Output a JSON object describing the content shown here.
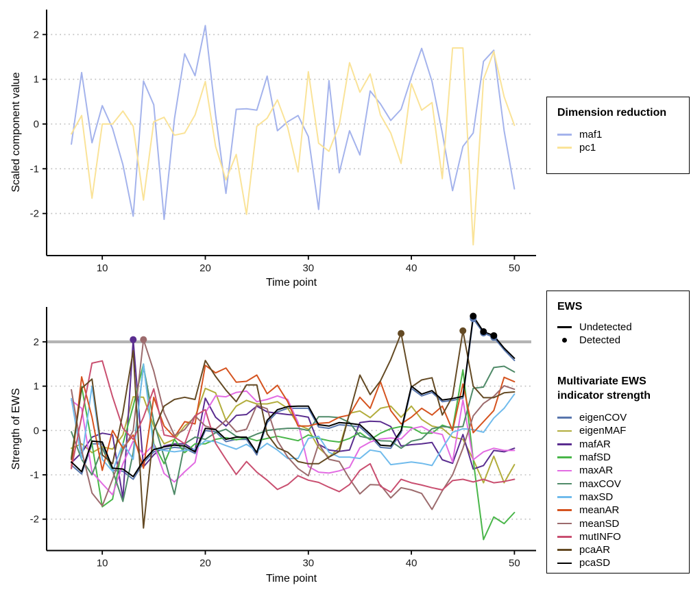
{
  "axes": {
    "top": {
      "ylabel": "Scaled component value",
      "xlabel": "Time point",
      "yticks": [
        "2",
        "1",
        "0",
        "-1",
        "-2"
      ],
      "xticks": [
        "10",
        "20",
        "30",
        "40",
        "50"
      ]
    },
    "bottom": {
      "ylabel": "Strength of EWS",
      "xlabel": "Time point",
      "yticks": [
        "2",
        "1",
        "0",
        "-1",
        "-2"
      ],
      "xticks": [
        "10",
        "20",
        "30",
        "40",
        "50"
      ]
    }
  },
  "legends": {
    "dimension": {
      "title": "Dimension reduction",
      "items": [
        {
          "label": "maf1",
          "color": "#a4b3ec"
        },
        {
          "label": "pc1",
          "color": "#fae398"
        }
      ]
    },
    "ews": {
      "title": "EWS",
      "items": [
        {
          "label": "Undetected",
          "glyph": "line",
          "color": "#000000"
        },
        {
          "label": "Detected",
          "glyph": "dot",
          "color": "#000000"
        }
      ]
    },
    "multivariate": {
      "title": "Multivariate EWS indicator strength",
      "items": [
        {
          "label": "eigenCOV",
          "color": "#5876ad"
        },
        {
          "label": "eigenMAF",
          "color": "#b2ad3c"
        },
        {
          "label": "mafAR",
          "color": "#5a2d8f"
        },
        {
          "label": "mafSD",
          "color": "#49b649"
        },
        {
          "label": "maxAR",
          "color": "#e26be2"
        },
        {
          "label": "maxCOV",
          "color": "#4f8a68"
        },
        {
          "label": "maxSD",
          "color": "#70bbec"
        },
        {
          "label": "meanAR",
          "color": "#d5531f"
        },
        {
          "label": "meanSD",
          "color": "#9c6b6d"
        },
        {
          "label": "mutINFO",
          "color": "#c94f70"
        },
        {
          "label": "pcaAR",
          "color": "#644a24"
        },
        {
          "label": "pcaSD",
          "color": "#000000"
        }
      ]
    }
  },
  "chart_data": [
    {
      "type": "line",
      "title": "",
      "xlabel": "Time point",
      "ylabel": "Scaled component value",
      "x": [
        7,
        8,
        9,
        10,
        11,
        12,
        13,
        14,
        15,
        16,
        17,
        18,
        19,
        20,
        21,
        22,
        23,
        24,
        25,
        26,
        27,
        28,
        29,
        30,
        31,
        32,
        33,
        34,
        35,
        36,
        37,
        38,
        39,
        40,
        41,
        42,
        43,
        44,
        45,
        46,
        47,
        48,
        49,
        50
      ],
      "xlim": [
        4.6,
        52.1
      ],
      "ylim": [
        -2.9,
        2.55
      ],
      "grid": "dotted-horizontal",
      "legend_position": "right",
      "series": [
        {
          "name": "maf1",
          "color": "#a4b3ec",
          "values": [
            -0.45,
            1.15,
            -0.42,
            0.41,
            -0.1,
            -0.91,
            -2.06,
            0.96,
            0.43,
            -2.13,
            0.11,
            1.57,
            1.08,
            2.2,
            0.2,
            -1.55,
            0.33,
            0.34,
            0.31,
            1.07,
            -0.15,
            0.05,
            0.19,
            -0.28,
            -1.91,
            0.97,
            -1.09,
            -0.15,
            -0.69,
            0.74,
            0.45,
            0.08,
            0.33,
            1.04,
            1.69,
            0.95,
            -0.2,
            -1.49,
            -0.5,
            -0.2,
            1.4,
            1.65,
            -0.15,
            -1.45
          ]
        },
        {
          "name": "pc1",
          "color": "#fae398",
          "values": [
            -0.22,
            0.19,
            -1.66,
            0.0,
            0.0,
            0.29,
            -0.05,
            -1.7,
            0.05,
            0.15,
            -0.25,
            -0.2,
            0.2,
            0.95,
            -0.5,
            -1.25,
            -0.68,
            -2.02,
            -0.05,
            0.13,
            0.54,
            -0.08,
            -1.07,
            1.17,
            -0.43,
            -0.61,
            -0.02,
            1.37,
            0.71,
            1.12,
            0.2,
            -0.2,
            -0.88,
            0.9,
            0.31,
            0.48,
            -1.22,
            1.7,
            1.7,
            -2.7,
            1.0,
            1.62,
            0.61,
            -0.03
          ]
        }
      ]
    },
    {
      "type": "line",
      "title": "",
      "xlabel": "Time point",
      "ylabel": "Strength of EWS",
      "x": [
        7,
        8,
        9,
        10,
        11,
        12,
        13,
        14,
        15,
        16,
        17,
        18,
        19,
        20,
        21,
        22,
        23,
        24,
        25,
        26,
        27,
        28,
        29,
        30,
        31,
        32,
        33,
        34,
        35,
        36,
        37,
        38,
        39,
        40,
        41,
        42,
        43,
        44,
        45,
        46,
        47,
        48,
        49,
        50
      ],
      "xlim": [
        4.6,
        52.1
      ],
      "ylim": [
        -2.75,
        2.8
      ],
      "grid": "dotted-horizontal",
      "threshold": {
        "value": 2,
        "color": "#b4b4b4"
      },
      "legend_position": "right",
      "series": [
        {
          "name": "eigenCOV",
          "color": "#5876ad",
          "detected": [
            46,
            47,
            48
          ],
          "values": [
            -0.78,
            -0.98,
            -0.3,
            -0.3,
            -0.9,
            -0.92,
            -1.1,
            -0.73,
            -0.48,
            -0.42,
            -0.38,
            -0.4,
            -0.52,
            0.0,
            -0.03,
            -0.25,
            -0.2,
            -0.2,
            -0.55,
            0.18,
            0.42,
            0.5,
            0.5,
            0.5,
            0.08,
            0.05,
            0.13,
            0.11,
            0.08,
            -0.13,
            -0.38,
            -0.4,
            -0.05,
            0.95,
            0.78,
            0.86,
            0.65,
            0.68,
            0.73,
            2.52,
            2.2,
            2.1,
            1.82,
            1.58
          ]
        },
        {
          "name": "eigenMAF",
          "color": "#b2ad3c",
          "detected": [],
          "values": [
            -0.4,
            -0.3,
            -0.5,
            -0.37,
            -0.42,
            -0.1,
            0.76,
            0.75,
            0.1,
            -0.3,
            -0.2,
            0.1,
            0.3,
            0.95,
            0.85,
            0.23,
            0.55,
            0.68,
            0.6,
            0.6,
            0.65,
            0.5,
            0.13,
            0.03,
            -0.39,
            -0.6,
            -0.39,
            0.39,
            0.44,
            0.29,
            0.5,
            0.55,
            0.3,
            0.55,
            0.25,
            0.1,
            0.05,
            -0.15,
            -0.2,
            -0.65,
            -1.18,
            -0.58,
            -1.18,
            -0.77
          ]
        },
        {
          "name": "mafAR",
          "color": "#5a2d8f",
          "detected": [
            13
          ],
          "values": [
            -0.73,
            -0.5,
            -0.15,
            -0.06,
            -0.1,
            -1.53,
            2.05,
            -0.82,
            -0.55,
            -0.35,
            -0.3,
            -0.3,
            -0.45,
            0.73,
            0.3,
            0.1,
            0.34,
            0.36,
            0.55,
            0.42,
            0.39,
            0.36,
            0.34,
            0.3,
            -0.31,
            -0.44,
            -0.47,
            -0.44,
            0.18,
            0.21,
            0.2,
            0.09,
            -0.35,
            -0.32,
            -0.3,
            -0.27,
            -0.66,
            -0.74,
            -0.09,
            -0.87,
            -0.79,
            -0.45,
            -0.48,
            -0.4
          ]
        },
        {
          "name": "mafSD",
          "color": "#49b649",
          "detected": [],
          "values": [
            -0.61,
            0.99,
            -0.3,
            -1.72,
            -1.55,
            -0.3,
            0.55,
            1.5,
            -0.3,
            -0.75,
            -0.2,
            -0.5,
            -0.3,
            -0.3,
            -0.2,
            -0.16,
            -0.21,
            -0.16,
            -0.23,
            -0.18,
            -0.13,
            -0.18,
            -0.23,
            -0.1,
            -0.18,
            -0.23,
            -0.26,
            -0.18,
            -0.05,
            -0.21,
            -0.06,
            0.04,
            0.09,
            0.07,
            -0.06,
            -0.06,
            0.12,
            0.04,
            1.37,
            -0.66,
            -2.46,
            -1.95,
            -2.1,
            -1.85
          ]
        },
        {
          "name": "maxAR",
          "color": "#e26be2",
          "detected": [],
          "values": [
            0.68,
            0.5,
            -0.94,
            -1.2,
            -1.45,
            -0.75,
            -0.24,
            -0.55,
            -0.32,
            -0.97,
            -1.16,
            -0.93,
            -0.72,
            0.4,
            0.78,
            0.76,
            0.86,
            0.89,
            0.65,
            0.7,
            0.78,
            0.7,
            0.18,
            -0.81,
            -0.94,
            -0.96,
            -0.91,
            -0.83,
            -0.39,
            -0.26,
            -0.19,
            -0.17,
            -0.19,
            0.04,
            0.09,
            -0.04,
            -0.09,
            -0.71,
            0.69,
            -0.66,
            -0.48,
            -0.4,
            -0.45,
            -0.45
          ]
        },
        {
          "name": "maxCOV",
          "color": "#4f8a68",
          "detected": [],
          "values": [
            -0.03,
            -0.65,
            -1.0,
            -0.4,
            -0.9,
            -1.6,
            -0.5,
            1.45,
            0.2,
            -0.6,
            -1.44,
            -0.3,
            -0.15,
            -0.2,
            -0.05,
            0.03,
            -0.13,
            -0.18,
            -0.08,
            0.0,
            0.03,
            0.05,
            0.05,
            0.0,
            0.31,
            0.31,
            0.29,
            0.18,
            -0.13,
            -0.18,
            -0.23,
            -0.24,
            -0.4,
            -0.24,
            -0.19,
            0.04,
            0.09,
            0.07,
            0.09,
            0.95,
            0.98,
            1.42,
            1.45,
            1.32
          ]
        },
        {
          "name": "maxSD",
          "color": "#70bbec",
          "detected": [],
          "values": [
            0.72,
            -0.65,
            1.0,
            -0.65,
            -0.92,
            -0.29,
            -0.65,
            1.5,
            -0.4,
            -0.45,
            -0.48,
            -0.45,
            -0.42,
            -0.23,
            -0.25,
            -0.34,
            -0.42,
            -0.31,
            -0.47,
            -0.29,
            -0.44,
            -0.63,
            -0.63,
            -0.18,
            -0.13,
            -0.49,
            -0.6,
            -0.6,
            -0.63,
            -0.44,
            -0.48,
            -0.77,
            -0.74,
            -0.71,
            -0.74,
            -0.79,
            -0.4,
            -0.04,
            0.04,
            0.02,
            -0.04,
            0.28,
            0.5,
            0.82
          ]
        },
        {
          "name": "meanAR",
          "color": "#d5531f",
          "detected": [],
          "values": [
            -0.85,
            1.21,
            0.3,
            -0.9,
            0.0,
            -0.4,
            -0.1,
            -0.85,
            0.75,
            0.1,
            -0.15,
            0.2,
            0.15,
            1.47,
            1.3,
            1.41,
            1.09,
            1.11,
            1.25,
            0.83,
            1.02,
            0.65,
            0.1,
            0.1,
            0.16,
            0.18,
            0.3,
            0.35,
            0.75,
            0.5,
            1.1,
            0.45,
            0.15,
            0.3,
            0.5,
            0.35,
            0.55,
            0.0,
            1.05,
            -0.05,
            0.2,
            0.45,
            1.2,
            1.1
          ]
        },
        {
          "name": "meanSD",
          "color": "#9c6b6d",
          "detected": [
            14
          ],
          "values": [
            0.92,
            -0.45,
            -1.41,
            -1.7,
            -1.1,
            -0.45,
            0.0,
            2.05,
            1.34,
            0.4,
            -0.11,
            0.02,
            0.33,
            0.1,
            0.03,
            0.23,
            -0.03,
            0.03,
            0.57,
            0.49,
            -0.23,
            -0.6,
            -0.86,
            -1.02,
            -0.3,
            -0.65,
            -0.7,
            -1.09,
            -1.43,
            -1.22,
            -1.23,
            -1.52,
            -1.29,
            -1.34,
            -1.42,
            -1.78,
            -1.36,
            -1.0,
            -0.4,
            0.33,
            0.61,
            0.77,
            1.01,
            0.93
          ]
        },
        {
          "name": "mutINFO",
          "color": "#c94f70",
          "detected": [],
          "values": [
            -0.86,
            0.31,
            1.52,
            1.57,
            0.76,
            0.05,
            -0.2,
            0.3,
            0.94,
            -0.1,
            -0.15,
            -0.3,
            0.33,
            0.47,
            -0.29,
            -0.65,
            -0.99,
            -0.7,
            -0.94,
            -1.12,
            -1.33,
            -1.22,
            -1.02,
            -1.12,
            -1.17,
            -1.28,
            -1.38,
            -1.22,
            -0.9,
            -0.75,
            -1.26,
            -1.39,
            -1.1,
            -1.18,
            -1.23,
            -1.29,
            -1.34,
            -1.13,
            -1.1,
            -1.16,
            -1.1,
            -1.18,
            -1.15,
            -1.1
          ]
        },
        {
          "name": "pcaAR",
          "color": "#644a24",
          "detected": [
            39,
            45
          ],
          "values": [
            -0.65,
            0.95,
            1.16,
            -0.55,
            -0.75,
            0.4,
            1.8,
            -2.2,
            0.0,
            0.55,
            0.7,
            0.75,
            0.7,
            1.58,
            1.22,
            0.91,
            0.65,
            1.03,
            1.03,
            -0.08,
            -0.39,
            -0.49,
            -0.7,
            -0.75,
            -0.75,
            -0.6,
            -0.47,
            0.39,
            1.25,
            0.81,
            1.12,
            1.6,
            2.19,
            0.98,
            1.14,
            1.19,
            0.35,
            0.77,
            2.25,
            1.0,
            0.74,
            0.74,
            0.85,
            0.87
          ]
        },
        {
          "name": "pcaSD",
          "color": "#000000",
          "detected": [
            46,
            47,
            48
          ],
          "values": [
            -0.71,
            -0.93,
            -0.24,
            -0.26,
            -0.85,
            -0.87,
            -1.04,
            -0.68,
            -0.43,
            -0.37,
            -0.33,
            -0.35,
            -0.48,
            0.05,
            0.02,
            -0.2,
            -0.15,
            -0.15,
            -0.5,
            0.23,
            0.47,
            0.54,
            0.55,
            0.55,
            0.13,
            0.1,
            0.18,
            0.16,
            0.13,
            -0.08,
            -0.33,
            -0.35,
            0.0,
            1.0,
            0.82,
            0.9,
            0.69,
            0.72,
            0.77,
            2.58,
            2.23,
            2.14,
            1.86,
            1.63
          ]
        }
      ]
    }
  ]
}
